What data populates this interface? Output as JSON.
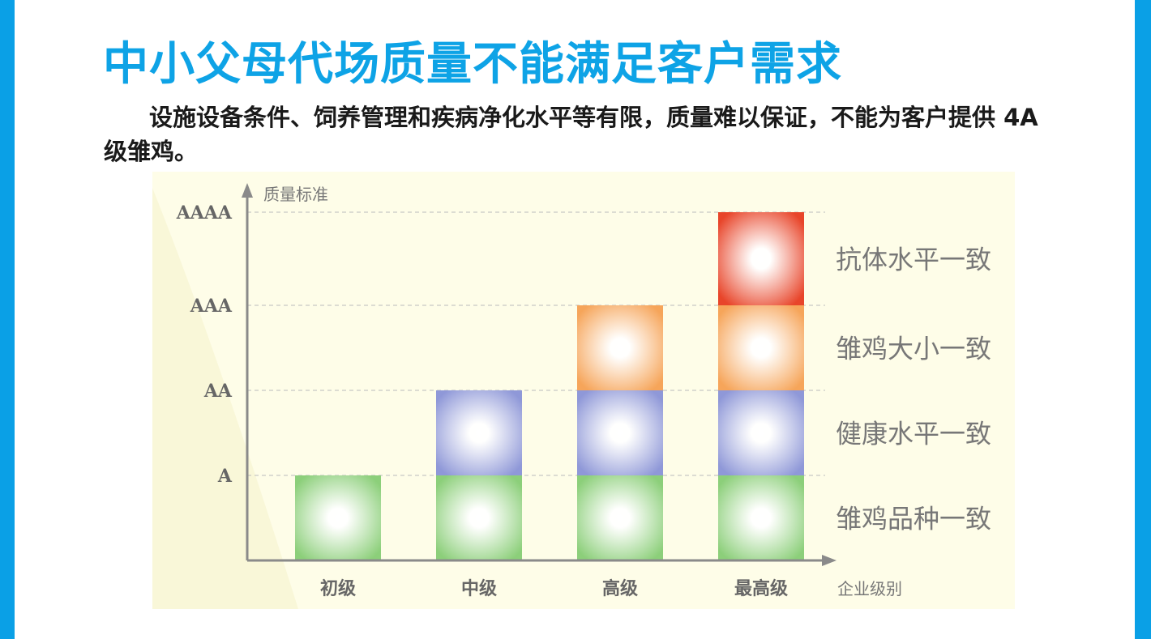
{
  "title": "中小父母代场质量不能满足客户需求",
  "body_text": "设施设备条件、饲养管理和疾病净化水平等有限，质量难以保证，不能为客户提供 4A 级雏鸡。",
  "colors": {
    "accent": "#0ea3e6",
    "side_bar": "#0aa0e6",
    "chart_background": "#fefde8",
    "green_block": "#8ccf7a",
    "blue_block": "#8f98d8",
    "orange_block": "#f6a55a",
    "red_block": "#e8452a"
  },
  "chart_data": {
    "type": "bar",
    "stacked": true,
    "categories": [
      "初级",
      "中级",
      "高级",
      "最高级"
    ],
    "ylabel": "质量标准",
    "xlabel": "企业级别",
    "y_ticks": [
      "A",
      "AA",
      "AAA",
      "AAAA"
    ],
    "ylim": [
      0,
      4
    ],
    "grid": "dashed horizontal",
    "series": [
      {
        "name": "雏鸡品种一致",
        "values": [
          1,
          1,
          1,
          1
        ],
        "color": "#8ccf7a"
      },
      {
        "name": "健康水平一致",
        "values": [
          0,
          1,
          1,
          1
        ],
        "color": "#8f98d8"
      },
      {
        "name": "雏鸡大小一致",
        "values": [
          0,
          0,
          1,
          1
        ],
        "color": "#f6a55a"
      },
      {
        "name": "抗体水平一致",
        "values": [
          0,
          0,
          0,
          1
        ],
        "color": "#e8452a"
      }
    ],
    "legend_position": "right"
  }
}
